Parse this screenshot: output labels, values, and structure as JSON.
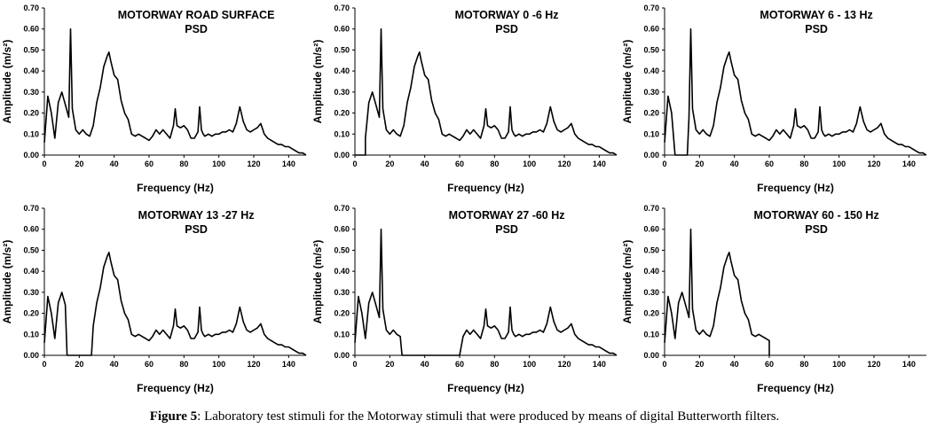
{
  "caption": {
    "label": "Figure 5",
    "text": ": Laboratory test stimuli for the Motorway stimuli that were produced by means of digital Butterworth filters."
  },
  "style": {
    "line_color": "#000000",
    "background": "#ffffff"
  },
  "base_spectrum": {
    "x": [
      0,
      2,
      4,
      6,
      8,
      10,
      12,
      14,
      15,
      16,
      18,
      20,
      22,
      24,
      26,
      28,
      30,
      32,
      34,
      36,
      37,
      38,
      40,
      42,
      44,
      46,
      48,
      50,
      52,
      54,
      56,
      58,
      60,
      62,
      64,
      66,
      68,
      70,
      72,
      74,
      75,
      76,
      78,
      80,
      82,
      84,
      86,
      88,
      89,
      90,
      91,
      92,
      94,
      96,
      98,
      100,
      102,
      104,
      106,
      108,
      110,
      112,
      114,
      116,
      118,
      120,
      122,
      124,
      126,
      128,
      130,
      132,
      134,
      136,
      138,
      140,
      142,
      144,
      146,
      148,
      150
    ],
    "y": [
      0.06,
      0.28,
      0.2,
      0.08,
      0.25,
      0.3,
      0.24,
      0.18,
      0.6,
      0.22,
      0.12,
      0.1,
      0.12,
      0.1,
      0.09,
      0.14,
      0.25,
      0.32,
      0.42,
      0.47,
      0.49,
      0.45,
      0.38,
      0.36,
      0.26,
      0.2,
      0.17,
      0.1,
      0.09,
      0.1,
      0.09,
      0.08,
      0.07,
      0.09,
      0.12,
      0.1,
      0.12,
      0.1,
      0.08,
      0.14,
      0.22,
      0.14,
      0.13,
      0.14,
      0.12,
      0.08,
      0.08,
      0.11,
      0.23,
      0.12,
      0.1,
      0.09,
      0.1,
      0.09,
      0.1,
      0.1,
      0.11,
      0.11,
      0.12,
      0.11,
      0.15,
      0.23,
      0.16,
      0.12,
      0.11,
      0.12,
      0.13,
      0.15,
      0.1,
      0.08,
      0.07,
      0.06,
      0.05,
      0.05,
      0.04,
      0.04,
      0.03,
      0.02,
      0.01,
      0.01,
      0.0
    ]
  },
  "chart_data": [
    {
      "type": "line",
      "title": "MOTORWAY ROAD SURFACE",
      "subtitle": "PSD",
      "xlabel": "Frequency (Hz)",
      "ylabel": "Amplitude (m/s²)",
      "xlim": [
        0,
        150
      ],
      "ylim": [
        0,
        0.7
      ],
      "xticks": [
        0,
        20,
        40,
        60,
        80,
        100,
        120,
        140
      ],
      "yticks": [
        "0.00",
        "0.10",
        "0.20",
        "0.30",
        "0.40",
        "0.50",
        "0.60",
        "0.70"
      ],
      "band": [
        0,
        150
      ]
    },
    {
      "type": "line",
      "title": "MOTORWAY 0 -6 Hz",
      "subtitle": "PSD",
      "xlabel": "Frequency (Hz)",
      "ylabel": "Amplitude (m/s²)",
      "xlim": [
        0,
        150
      ],
      "ylim": [
        0,
        0.7
      ],
      "xticks": [
        0,
        20,
        40,
        60,
        80,
        100,
        120,
        140
      ],
      "yticks": [
        "0.00",
        "0.10",
        "0.20",
        "0.30",
        "0.40",
        "0.50",
        "0.60",
        "0.70"
      ],
      "band": [
        6,
        150
      ]
    },
    {
      "type": "line",
      "title": "MOTORWAY 6 - 13 Hz",
      "subtitle": "PSD",
      "xlabel": "Frequency (Hz)",
      "ylabel": "Amplitude (m/s²)",
      "xlim": [
        0,
        150
      ],
      "ylim": [
        0,
        0.7
      ],
      "xticks": [
        0,
        20,
        40,
        60,
        80,
        100,
        120,
        140
      ],
      "yticks": [
        "0.00",
        "0.10",
        "0.20",
        "0.30",
        "0.40",
        "0.50",
        "0.60",
        "0.70"
      ],
      "cut": [
        6,
        13
      ]
    },
    {
      "type": "line",
      "title": "MOTORWAY 13 -27 Hz",
      "subtitle": "PSD",
      "xlabel": "Frequency (Hz)",
      "ylabel": "Amplitude (m/s²)",
      "xlim": [
        0,
        150
      ],
      "ylim": [
        0,
        0.7
      ],
      "xticks": [
        0,
        20,
        40,
        60,
        80,
        100,
        120,
        140
      ],
      "yticks": [
        "0.00",
        "0.10",
        "0.20",
        "0.30",
        "0.40",
        "0.50",
        "0.60",
        "0.70"
      ],
      "cut": [
        13,
        27
      ]
    },
    {
      "type": "line",
      "title": "MOTORWAY 27 -60 Hz",
      "subtitle": "PSD",
      "xlabel": "Frequency (Hz)",
      "ylabel": "Amplitude (m/s²)",
      "xlim": [
        0,
        150
      ],
      "ylim": [
        0,
        0.7
      ],
      "xticks": [
        0,
        20,
        40,
        60,
        80,
        100,
        120,
        140
      ],
      "yticks": [
        "0.00",
        "0.10",
        "0.20",
        "0.30",
        "0.40",
        "0.50",
        "0.60",
        "0.70"
      ],
      "cut": [
        27,
        60
      ]
    },
    {
      "type": "line",
      "title": "MOTORWAY 60 - 150 Hz",
      "subtitle": "PSD",
      "xlabel": "Frequency (Hz)",
      "ylabel": "Amplitude (m/s²)",
      "xlim": [
        0,
        150
      ],
      "ylim": [
        0,
        0.7
      ],
      "xticks": [
        0,
        20,
        40,
        60,
        80,
        100,
        120,
        140
      ],
      "yticks": [
        "0.00",
        "0.10",
        "0.20",
        "0.30",
        "0.40",
        "0.50",
        "0.60",
        "0.70"
      ],
      "band": [
        0,
        60
      ]
    }
  ]
}
